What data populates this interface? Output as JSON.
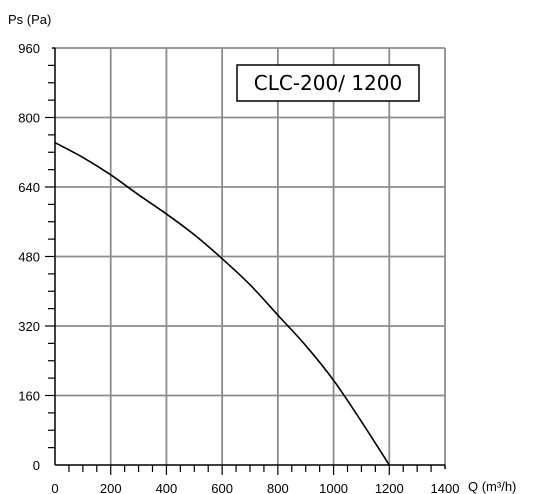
{
  "chart_data": {
    "type": "line",
    "xlabel": "Q (m³/h)",
    "ylabel": "Ps (Pa)",
    "xlim": [
      0,
      1400
    ],
    "ylim": [
      0,
      960
    ],
    "x_ticks": [
      0,
      200,
      400,
      600,
      800,
      1000,
      1200,
      1400
    ],
    "y_ticks": [
      0,
      160,
      320,
      480,
      640,
      800,
      960
    ],
    "grid": true,
    "annotation": "CLC-200/ 1200",
    "series": [
      {
        "color": "#000000",
        "x": [
          0,
          100,
          200,
          300,
          400,
          500,
          600,
          700,
          800,
          900,
          1000,
          1100,
          1200
        ],
        "y": [
          742,
          708,
          668,
          622,
          578,
          530,
          475,
          415,
          345,
          275,
          195,
          100,
          0
        ]
      }
    ]
  },
  "colors": {
    "grid": "#8c8c8c",
    "axis": "#000000",
    "curve": "#000000"
  }
}
